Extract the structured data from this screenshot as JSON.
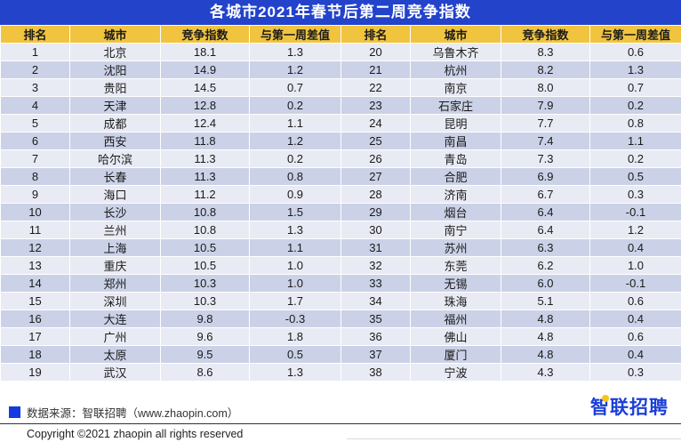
{
  "title": "各城市2021年春节后第二周竞争指数",
  "table": {
    "headers": [
      "排名",
      "城市",
      "竞争指数",
      "与第一周差值"
    ],
    "left_rows": [
      [
        "1",
        "北京",
        "18.1",
        "1.3"
      ],
      [
        "2",
        "沈阳",
        "14.9",
        "1.2"
      ],
      [
        "3",
        "贵阳",
        "14.5",
        "0.7"
      ],
      [
        "4",
        "天津",
        "12.8",
        "0.2"
      ],
      [
        "5",
        "成都",
        "12.4",
        "1.1"
      ],
      [
        "6",
        "西安",
        "11.8",
        "1.2"
      ],
      [
        "7",
        "哈尔滨",
        "11.3",
        "0.2"
      ],
      [
        "8",
        "长春",
        "11.3",
        "0.8"
      ],
      [
        "9",
        "海口",
        "11.2",
        "0.9"
      ],
      [
        "10",
        "长沙",
        "10.8",
        "1.5"
      ],
      [
        "11",
        "兰州",
        "10.8",
        "1.3"
      ],
      [
        "12",
        "上海",
        "10.5",
        "1.1"
      ],
      [
        "13",
        "重庆",
        "10.5",
        "1.0"
      ],
      [
        "14",
        "郑州",
        "10.3",
        "1.0"
      ],
      [
        "15",
        "深圳",
        "10.3",
        "1.7"
      ],
      [
        "16",
        "大连",
        "9.8",
        "-0.3"
      ],
      [
        "17",
        "广州",
        "9.6",
        "1.8"
      ],
      [
        "18",
        "太原",
        "9.5",
        "0.5"
      ],
      [
        "19",
        "武汉",
        "8.6",
        "1.3"
      ]
    ],
    "right_rows": [
      [
        "20",
        "乌鲁木齐",
        "8.3",
        "0.6"
      ],
      [
        "21",
        "杭州",
        "8.2",
        "1.3"
      ],
      [
        "22",
        "南京",
        "8.0",
        "0.7"
      ],
      [
        "23",
        "石家庄",
        "7.9",
        "0.2"
      ],
      [
        "24",
        "昆明",
        "7.7",
        "0.8"
      ],
      [
        "25",
        "南昌",
        "7.4",
        "1.1"
      ],
      [
        "26",
        "青岛",
        "7.3",
        "0.2"
      ],
      [
        "27",
        "合肥",
        "6.9",
        "0.5"
      ],
      [
        "28",
        "济南",
        "6.7",
        "0.3"
      ],
      [
        "29",
        "烟台",
        "6.4",
        "-0.1"
      ],
      [
        "30",
        "南宁",
        "6.4",
        "1.2"
      ],
      [
        "31",
        "苏州",
        "6.3",
        "0.4"
      ],
      [
        "32",
        "东莞",
        "6.2",
        "1.0"
      ],
      [
        "33",
        "无锡",
        "6.0",
        "-0.1"
      ],
      [
        "34",
        "珠海",
        "5.1",
        "0.6"
      ],
      [
        "35",
        "福州",
        "4.8",
        "0.4"
      ],
      [
        "36",
        "佛山",
        "4.8",
        "0.6"
      ],
      [
        "37",
        "厦门",
        "4.8",
        "0.4"
      ],
      [
        "38",
        "宁波",
        "4.3",
        "0.3"
      ]
    ]
  },
  "footer": {
    "source_label": "数据来源：智联招聘（www.zhaopin.com）",
    "copyright": "Copyright ©2021 zhaopin all rights reserved",
    "logo_text": "智联招聘"
  },
  "colors": {
    "title-bar": "#2343cb",
    "header-bg": "#f1c440",
    "row-odd": "#e9ebf4",
    "row-even": "#cbd2e7",
    "logo-blue": "#1b3fd8",
    "logo-dot": "#f5c518",
    "source-bullet": "#1539e0"
  },
  "chart_data": {
    "type": "table",
    "title": "各城市2021年春节后第二周竞争指数",
    "columns": [
      "排名",
      "城市",
      "竞争指数",
      "与第一周差值"
    ],
    "rows": [
      [
        1,
        "北京",
        18.1,
        1.3
      ],
      [
        2,
        "沈阳",
        14.9,
        1.2
      ],
      [
        3,
        "贵阳",
        14.5,
        0.7
      ],
      [
        4,
        "天津",
        12.8,
        0.2
      ],
      [
        5,
        "成都",
        12.4,
        1.1
      ],
      [
        6,
        "西安",
        11.8,
        1.2
      ],
      [
        7,
        "哈尔滨",
        11.3,
        0.2
      ],
      [
        8,
        "长春",
        11.3,
        0.8
      ],
      [
        9,
        "海口",
        11.2,
        0.9
      ],
      [
        10,
        "长沙",
        10.8,
        1.5
      ],
      [
        11,
        "兰州",
        10.8,
        1.3
      ],
      [
        12,
        "上海",
        10.5,
        1.1
      ],
      [
        13,
        "重庆",
        10.5,
        1.0
      ],
      [
        14,
        "郑州",
        10.3,
        1.0
      ],
      [
        15,
        "深圳",
        10.3,
        1.7
      ],
      [
        16,
        "大连",
        9.8,
        -0.3
      ],
      [
        17,
        "广州",
        9.6,
        1.8
      ],
      [
        18,
        "太原",
        9.5,
        0.5
      ],
      [
        19,
        "武汉",
        8.6,
        1.3
      ],
      [
        20,
        "乌鲁木齐",
        8.3,
        0.6
      ],
      [
        21,
        "杭州",
        8.2,
        1.3
      ],
      [
        22,
        "南京",
        8.0,
        0.7
      ],
      [
        23,
        "石家庄",
        7.9,
        0.2
      ],
      [
        24,
        "昆明",
        7.7,
        0.8
      ],
      [
        25,
        "南昌",
        7.4,
        1.1
      ],
      [
        26,
        "青岛",
        7.3,
        0.2
      ],
      [
        27,
        "合肥",
        6.9,
        0.5
      ],
      [
        28,
        "济南",
        6.7,
        0.3
      ],
      [
        29,
        "烟台",
        6.4,
        -0.1
      ],
      [
        30,
        "南宁",
        6.4,
        1.2
      ],
      [
        31,
        "苏州",
        6.3,
        0.4
      ],
      [
        32,
        "东莞",
        6.2,
        1.0
      ],
      [
        33,
        "无锡",
        6.0,
        -0.1
      ],
      [
        34,
        "珠海",
        5.1,
        0.6
      ],
      [
        35,
        "福州",
        4.8,
        0.4
      ],
      [
        36,
        "佛山",
        4.8,
        0.6
      ],
      [
        37,
        "厦门",
        4.8,
        0.4
      ],
      [
        38,
        "宁波",
        4.3,
        0.3
      ]
    ],
    "layout": "two-column table: ranks 1-19 left half, ranks 20-38 right half"
  }
}
